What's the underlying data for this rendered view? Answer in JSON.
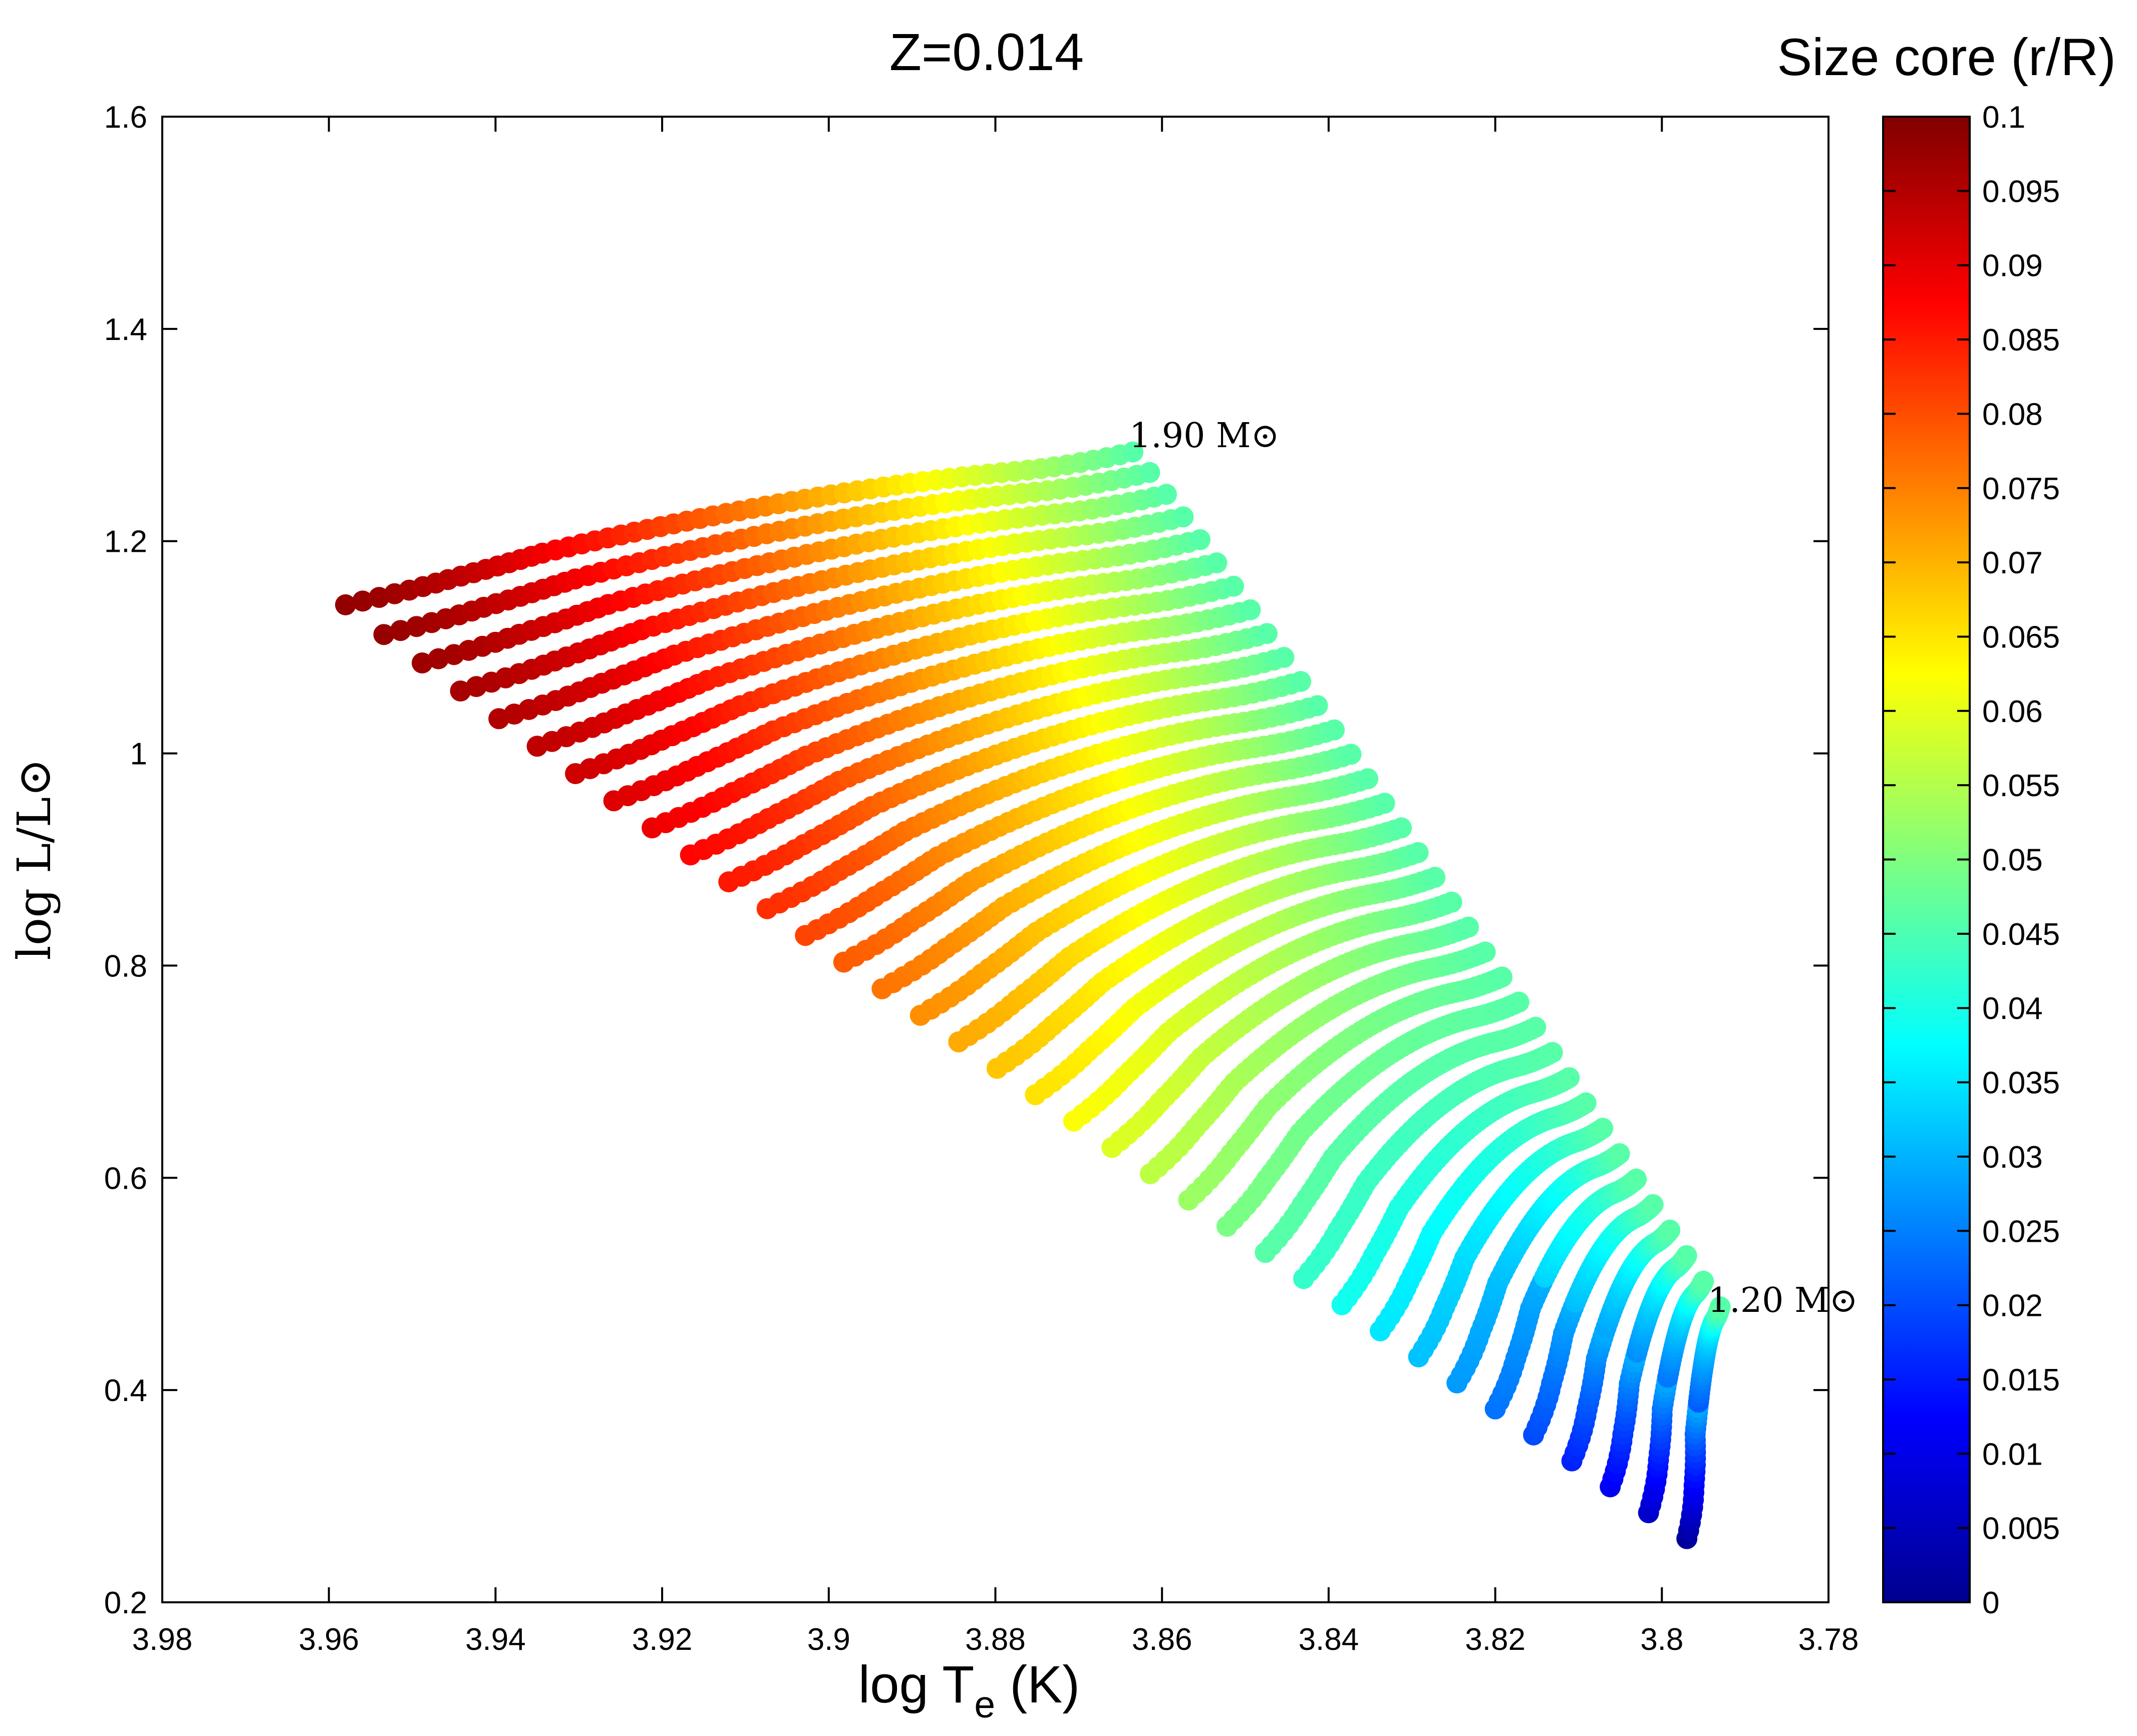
{
  "chart_data": {
    "type": "scatter",
    "title": "Z=0.014",
    "xlabel": {
      "main": "log T",
      "sub": "e",
      "suffix": " (K)"
    },
    "ylabel": "log L/L⊙",
    "xlim": [
      3.98,
      3.78
    ],
    "ylim": [
      0.2,
      1.6
    ],
    "x_reversed": true,
    "x_ticks": [
      "3.98",
      "3.96",
      "3.94",
      "3.92",
      "3.9",
      "3.88",
      "3.86",
      "3.84",
      "3.82",
      "3.8",
      "3.78"
    ],
    "y_ticks": [
      "0.2",
      "0.4",
      "0.6",
      "0.8",
      "1",
      "1.2",
      "1.4",
      "1.6"
    ],
    "colorbar": {
      "title": "Size core (r/R)",
      "range": [
        0,
        0.1
      ],
      "ticks": [
        "0",
        "0.005",
        "0.01",
        "0.015",
        "0.02",
        "0.025",
        "0.03",
        "0.035",
        "0.04",
        "0.045",
        "0.05",
        "0.055",
        "0.06",
        "0.065",
        "0.07",
        "0.075",
        "0.08",
        "0.085",
        "0.09",
        "0.095",
        "0.1"
      ],
      "colormap": "jet"
    },
    "annotations": [
      {
        "text": "1.90 M⊙",
        "x": 3.8625,
        "y": 1.27
      },
      {
        "text": "1.20 M⊙",
        "x": 3.7935,
        "y": 0.465
      }
    ],
    "tracks": {
      "count": 36,
      "mass_range_label": [
        "1.20",
        "1.90"
      ],
      "high_mass_start": {
        "x": 3.958,
        "y": 1.14
      },
      "high_mass_end": {
        "x": 3.8635,
        "y": 1.272
      },
      "low_mass_start": {
        "x": 3.797,
        "y": 0.26
      },
      "low_mass_end": {
        "x": 3.793,
        "y": 0.47
      },
      "core_size_at_start_high": 0.098,
      "core_size_at_start_low": 0.003,
      "core_size_at_end": 0.046
    }
  }
}
